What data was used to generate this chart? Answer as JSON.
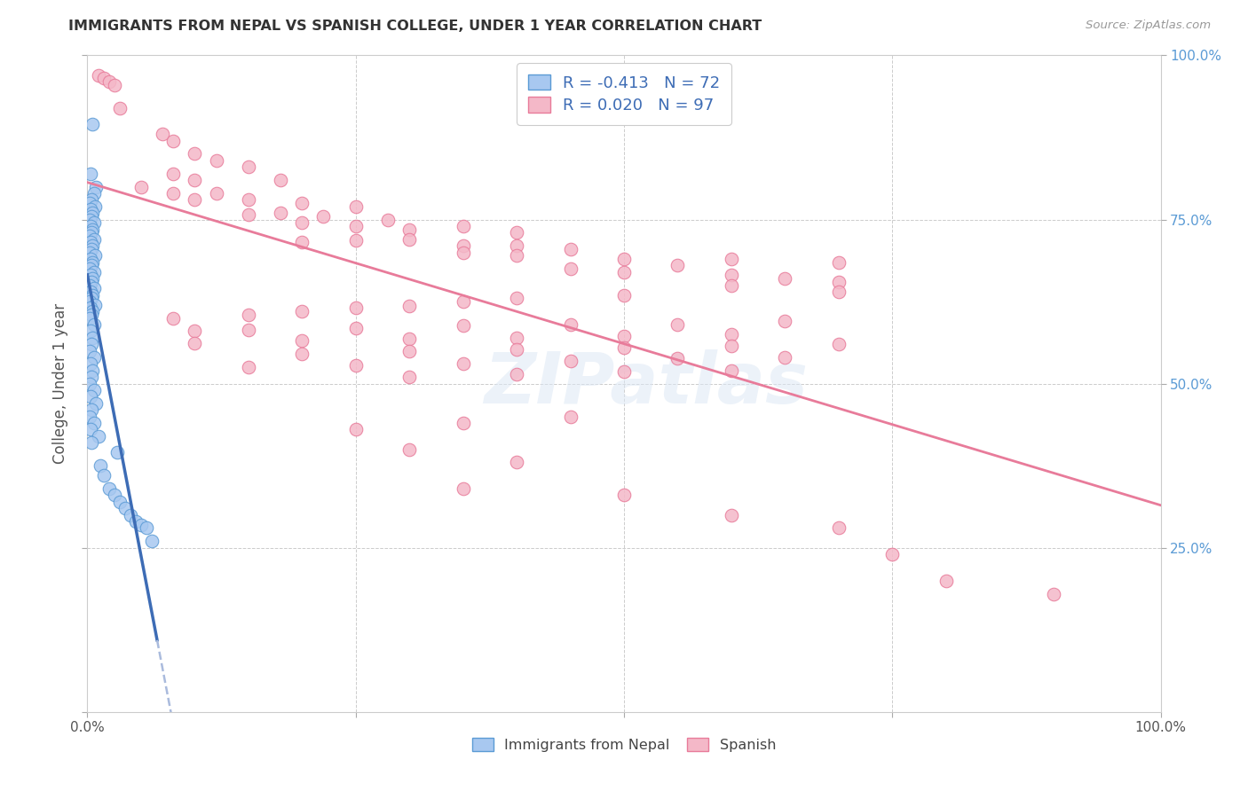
{
  "title": "IMMIGRANTS FROM NEPAL VS SPANISH COLLEGE, UNDER 1 YEAR CORRELATION CHART",
  "source": "Source: ZipAtlas.com",
  "ylabel": "College, Under 1 year",
  "legend_nepal_R": "-0.413",
  "legend_nepal_N": "72",
  "legend_spanish_R": "0.020",
  "legend_spanish_N": "97",
  "legend_label_nepal": "Immigrants from Nepal",
  "legend_label_spanish": "Spanish",
  "nepal_color": "#a8c8f0",
  "nepal_edge_color": "#5b9bd5",
  "spanish_color": "#f4b8c8",
  "spanish_edge_color": "#e87b9a",
  "nepal_trend_color": "#3d6cb5",
  "nepal_trend_dash_color": "#aabbdd",
  "spanish_trend_color": "#e87b9a",
  "background_color": "#ffffff",
  "watermark": "ZIPatlas",
  "nepal_points": [
    [
      0.005,
      0.895
    ],
    [
      0.003,
      0.82
    ],
    [
      0.008,
      0.8
    ],
    [
      0.006,
      0.79
    ],
    [
      0.004,
      0.78
    ],
    [
      0.002,
      0.775
    ],
    [
      0.007,
      0.77
    ],
    [
      0.003,
      0.765
    ],
    [
      0.005,
      0.76
    ],
    [
      0.004,
      0.755
    ],
    [
      0.002,
      0.75
    ],
    [
      0.006,
      0.745
    ],
    [
      0.003,
      0.74
    ],
    [
      0.005,
      0.735
    ],
    [
      0.004,
      0.73
    ],
    [
      0.002,
      0.725
    ],
    [
      0.006,
      0.72
    ],
    [
      0.003,
      0.715
    ],
    [
      0.005,
      0.71
    ],
    [
      0.004,
      0.705
    ],
    [
      0.002,
      0.7
    ],
    [
      0.007,
      0.695
    ],
    [
      0.003,
      0.69
    ],
    [
      0.005,
      0.685
    ],
    [
      0.004,
      0.68
    ],
    [
      0.002,
      0.675
    ],
    [
      0.006,
      0.67
    ],
    [
      0.003,
      0.665
    ],
    [
      0.005,
      0.66
    ],
    [
      0.004,
      0.655
    ],
    [
      0.002,
      0.65
    ],
    [
      0.006,
      0.645
    ],
    [
      0.003,
      0.64
    ],
    [
      0.005,
      0.635
    ],
    [
      0.004,
      0.63
    ],
    [
      0.002,
      0.625
    ],
    [
      0.007,
      0.62
    ],
    [
      0.003,
      0.615
    ],
    [
      0.005,
      0.61
    ],
    [
      0.004,
      0.605
    ],
    [
      0.002,
      0.6
    ],
    [
      0.006,
      0.59
    ],
    [
      0.003,
      0.58
    ],
    [
      0.005,
      0.57
    ],
    [
      0.004,
      0.56
    ],
    [
      0.002,
      0.55
    ],
    [
      0.006,
      0.54
    ],
    [
      0.003,
      0.53
    ],
    [
      0.005,
      0.52
    ],
    [
      0.004,
      0.51
    ],
    [
      0.002,
      0.5
    ],
    [
      0.006,
      0.49
    ],
    [
      0.003,
      0.48
    ],
    [
      0.008,
      0.47
    ],
    [
      0.004,
      0.46
    ],
    [
      0.002,
      0.45
    ],
    [
      0.006,
      0.44
    ],
    [
      0.003,
      0.43
    ],
    [
      0.01,
      0.42
    ],
    [
      0.004,
      0.41
    ],
    [
      0.012,
      0.375
    ],
    [
      0.015,
      0.36
    ],
    [
      0.02,
      0.34
    ],
    [
      0.025,
      0.33
    ],
    [
      0.03,
      0.32
    ],
    [
      0.035,
      0.31
    ],
    [
      0.04,
      0.3
    ],
    [
      0.045,
      0.29
    ],
    [
      0.05,
      0.285
    ],
    [
      0.055,
      0.28
    ],
    [
      0.06,
      0.26
    ],
    [
      0.028,
      0.395
    ]
  ],
  "spanish_points": [
    [
      0.01,
      0.97
    ],
    [
      0.015,
      0.965
    ],
    [
      0.02,
      0.96
    ],
    [
      0.025,
      0.955
    ],
    [
      0.03,
      0.92
    ],
    [
      0.07,
      0.88
    ],
    [
      0.08,
      0.87
    ],
    [
      0.1,
      0.85
    ],
    [
      0.12,
      0.84
    ],
    [
      0.15,
      0.83
    ],
    [
      0.08,
      0.82
    ],
    [
      0.1,
      0.81
    ],
    [
      0.18,
      0.81
    ],
    [
      0.05,
      0.8
    ],
    [
      0.08,
      0.79
    ],
    [
      0.12,
      0.79
    ],
    [
      0.15,
      0.78
    ],
    [
      0.1,
      0.78
    ],
    [
      0.2,
      0.775
    ],
    [
      0.25,
      0.77
    ],
    [
      0.18,
      0.76
    ],
    [
      0.15,
      0.758
    ],
    [
      0.22,
      0.755
    ],
    [
      0.28,
      0.75
    ],
    [
      0.2,
      0.745
    ],
    [
      0.25,
      0.74
    ],
    [
      0.35,
      0.74
    ],
    [
      0.3,
      0.735
    ],
    [
      0.4,
      0.73
    ],
    [
      0.3,
      0.72
    ],
    [
      0.25,
      0.718
    ],
    [
      0.2,
      0.715
    ],
    [
      0.35,
      0.71
    ],
    [
      0.4,
      0.71
    ],
    [
      0.45,
      0.705
    ],
    [
      0.35,
      0.7
    ],
    [
      0.4,
      0.695
    ],
    [
      0.5,
      0.69
    ],
    [
      0.6,
      0.69
    ],
    [
      0.7,
      0.685
    ],
    [
      0.55,
      0.68
    ],
    [
      0.45,
      0.675
    ],
    [
      0.5,
      0.67
    ],
    [
      0.6,
      0.665
    ],
    [
      0.65,
      0.66
    ],
    [
      0.7,
      0.655
    ],
    [
      0.6,
      0.65
    ],
    [
      0.7,
      0.64
    ],
    [
      0.5,
      0.635
    ],
    [
      0.4,
      0.63
    ],
    [
      0.35,
      0.625
    ],
    [
      0.3,
      0.618
    ],
    [
      0.25,
      0.615
    ],
    [
      0.2,
      0.61
    ],
    [
      0.15,
      0.605
    ],
    [
      0.08,
      0.6
    ],
    [
      0.65,
      0.595
    ],
    [
      0.55,
      0.59
    ],
    [
      0.45,
      0.59
    ],
    [
      0.35,
      0.588
    ],
    [
      0.25,
      0.585
    ],
    [
      0.15,
      0.582
    ],
    [
      0.1,
      0.58
    ],
    [
      0.6,
      0.575
    ],
    [
      0.5,
      0.572
    ],
    [
      0.4,
      0.57
    ],
    [
      0.3,
      0.568
    ],
    [
      0.2,
      0.565
    ],
    [
      0.1,
      0.562
    ],
    [
      0.7,
      0.56
    ],
    [
      0.6,
      0.558
    ],
    [
      0.5,
      0.555
    ],
    [
      0.4,
      0.552
    ],
    [
      0.3,
      0.55
    ],
    [
      0.2,
      0.545
    ],
    [
      0.65,
      0.54
    ],
    [
      0.55,
      0.538
    ],
    [
      0.45,
      0.535
    ],
    [
      0.35,
      0.53
    ],
    [
      0.25,
      0.528
    ],
    [
      0.15,
      0.525
    ],
    [
      0.6,
      0.52
    ],
    [
      0.5,
      0.518
    ],
    [
      0.4,
      0.515
    ],
    [
      0.3,
      0.51
    ],
    [
      0.45,
      0.45
    ],
    [
      0.35,
      0.44
    ],
    [
      0.25,
      0.43
    ],
    [
      0.3,
      0.4
    ],
    [
      0.4,
      0.38
    ],
    [
      0.35,
      0.34
    ],
    [
      0.5,
      0.33
    ],
    [
      0.6,
      0.3
    ],
    [
      0.7,
      0.28
    ],
    [
      0.75,
      0.24
    ],
    [
      0.8,
      0.2
    ],
    [
      0.9,
      0.18
    ]
  ]
}
